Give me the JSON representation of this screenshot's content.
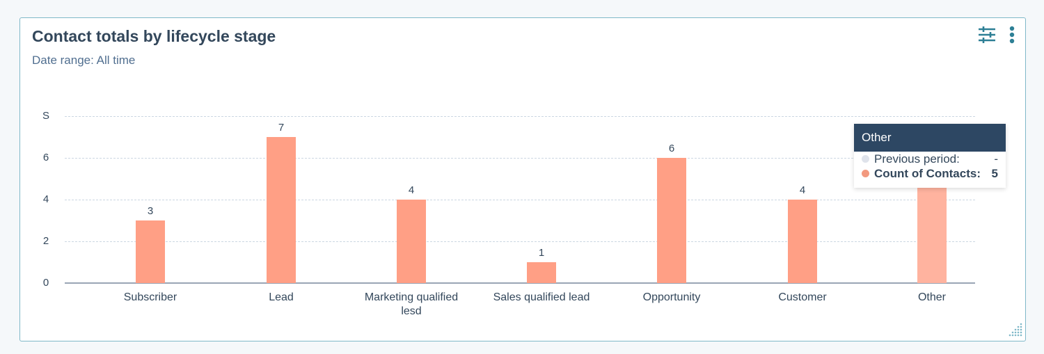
{
  "card": {
    "title": "Contact totals by lifecycle stage",
    "subtitle": "Date range: All time",
    "icons": [
      "filter-sliders-icon",
      "more-vertical-icon"
    ]
  },
  "chart_data": {
    "type": "bar",
    "title": "Contact totals by lifecycle stage",
    "subtitle": "Date range: All time",
    "categories": [
      "Subscriber",
      "Lead",
      "Marketing qualified lesd",
      "Sales qualified lead",
      "Opportunity",
      "Customer",
      "Other"
    ],
    "values": [
      3,
      7,
      4,
      1,
      6,
      4,
      5
    ],
    "series": [
      {
        "name": "Count of Contacts",
        "values": [
          3,
          7,
          4,
          1,
          6,
          4,
          5
        ],
        "color": "#ff9f85"
      }
    ],
    "data_labels": [
      "3",
      "7",
      "4",
      "1",
      "6",
      "4",
      ""
    ],
    "xlabel": "",
    "ylabel": "",
    "ylim": [
      0,
      8
    ],
    "yticks": [
      "0",
      "2",
      "4",
      "6",
      "S"
    ],
    "grid": true,
    "legend": "none"
  },
  "x_labels": [
    {
      "line1": "Subscriber",
      "line2": ""
    },
    {
      "line1": "Lead",
      "line2": ""
    },
    {
      "line1": "Marketing qualified",
      "line2": "lesd"
    },
    {
      "line1": "Sales qualified lead",
      "line2": ""
    },
    {
      "line1": "Opportunity",
      "line2": ""
    },
    {
      "line1": "Customer",
      "line2": ""
    },
    {
      "line1": "Other",
      "line2": ""
    }
  ],
  "tooltip": {
    "title": "Other",
    "rows": [
      {
        "label": "Previous period:",
        "value": "-",
        "color": "#dfe3eb"
      },
      {
        "label": "Count of Contacts:",
        "value": "5",
        "color": "#f2997f"
      }
    ]
  },
  "colors": {
    "bar": "#ff9f85",
    "bar_hover": "#ffb39f",
    "accent": "#2d7f95",
    "tooltip_header": "#2d4763"
  }
}
